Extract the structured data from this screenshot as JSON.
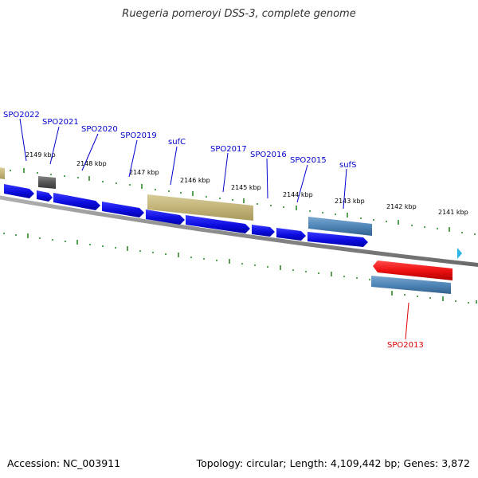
{
  "title": "Ruegeria pomeroyi DSS-3, complete genome",
  "footer": {
    "accession": "Accession: NC_003911",
    "summary": "Topology: circular; Length: 4,109,442 bp; Genes: 3,872"
  },
  "colors": {
    "background": "#ffffff",
    "backbone": "#808080",
    "tick": "#2a8a2a",
    "forward_gene": "#1010e8",
    "label_blue": "#0000cc",
    "label_red": "#dd0000",
    "selected_gene": "#ee1111",
    "rrna_like": "#c8b878",
    "pseudo": "#666666",
    "steel": "#4f86b8",
    "strand_marker": "#29b3e6"
  },
  "scale_labels": [
    "2149 kbp",
    "2148 kbp",
    "2147 kbp",
    "2146 kbp",
    "2145 kbp",
    "2144 kbp",
    "2143 kbp",
    "2142 kbp",
    "2141 kbp"
  ],
  "gene_labels": [
    "SPO2022",
    "SPO2021",
    "SPO2020",
    "SPO2019",
    "sufC",
    "SPO2017",
    "SPO2016",
    "SPO2015",
    "sufS",
    "SPO2013"
  ]
}
